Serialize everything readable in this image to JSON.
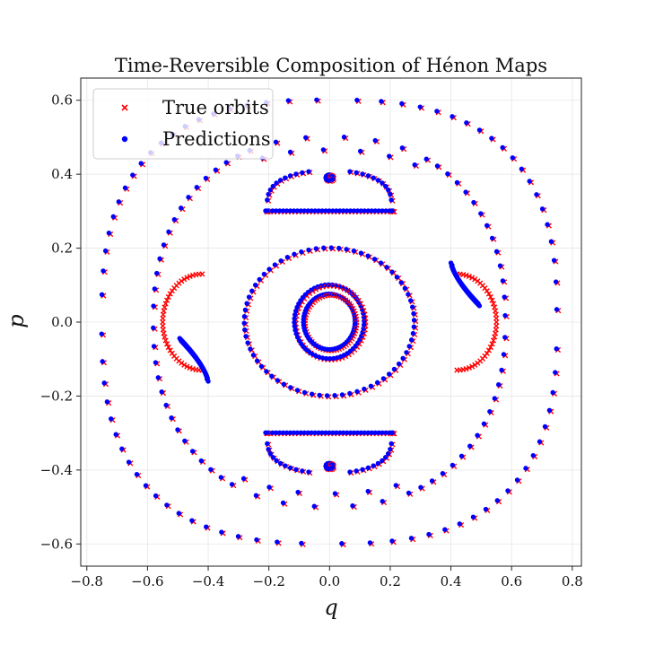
{
  "chart_data": {
    "type": "scatter",
    "title": "Time-Reversible Composition of Hénon Maps",
    "xlabel": "q",
    "ylabel": "p",
    "xlim": [
      -0.82,
      0.83
    ],
    "ylim": [
      -0.66,
      0.66
    ],
    "x_ticks": [
      -0.8,
      -0.6,
      -0.4,
      -0.2,
      0.0,
      0.2,
      0.4,
      0.6,
      0.8
    ],
    "x_tick_labels": [
      "−0.8",
      "−0.6",
      "−0.4",
      "−0.2",
      "0.0",
      "0.2",
      "0.4",
      "0.6",
      "0.8"
    ],
    "y_ticks": [
      -0.6,
      -0.4,
      -0.2,
      0.0,
      0.2,
      0.4,
      0.6
    ],
    "y_tick_labels": [
      "−0.6",
      "−0.4",
      "−0.2",
      "0.0",
      "0.2",
      "0.4",
      "0.6"
    ],
    "grid": true,
    "legend_position": "top-left",
    "series": [
      {
        "name": "True orbits",
        "marker": "x",
        "color": "#ff0000"
      },
      {
        "name": "Predictions",
        "marker": "o",
        "color": "#0000ff"
      }
    ],
    "orbits": [
      {
        "kind": "ring",
        "center": [
          0,
          0
        ],
        "rx": 0.085,
        "ry": 0.075
      },
      {
        "kind": "ring",
        "center": [
          0,
          0
        ],
        "rx": 0.115,
        "ry": 0.1
      },
      {
        "kind": "ring",
        "center": [
          0,
          0
        ],
        "rx": 0.28,
        "ry": 0.2
      },
      {
        "kind": "ring",
        "center": [
          0,
          0
        ],
        "rx": 0.75,
        "ry": 0.6,
        "power": 1.35
      },
      {
        "kind": "ring",
        "center": [
          0,
          0
        ],
        "rx": 0.58,
        "ry": 0.5,
        "power": 1.15,
        "split_y": 0.26
      },
      {
        "kind": "cap",
        "center_y": 0.39,
        "half_width": 0.21,
        "flat_y": 0.3,
        "dir": 1
      },
      {
        "kind": "cap",
        "center_y": -0.39,
        "half_width": 0.21,
        "flat_y": -0.3,
        "dir": -1
      },
      {
        "kind": "dot",
        "center": [
          0,
          0.39
        ]
      },
      {
        "kind": "dot",
        "center": [
          0,
          -0.39
        ]
      },
      {
        "kind": "crescent",
        "center": [
          0.42,
          0.0
        ],
        "dir": 1
      },
      {
        "kind": "crescent",
        "center": [
          -0.42,
          0.0
        ],
        "dir": -1
      }
    ]
  }
}
